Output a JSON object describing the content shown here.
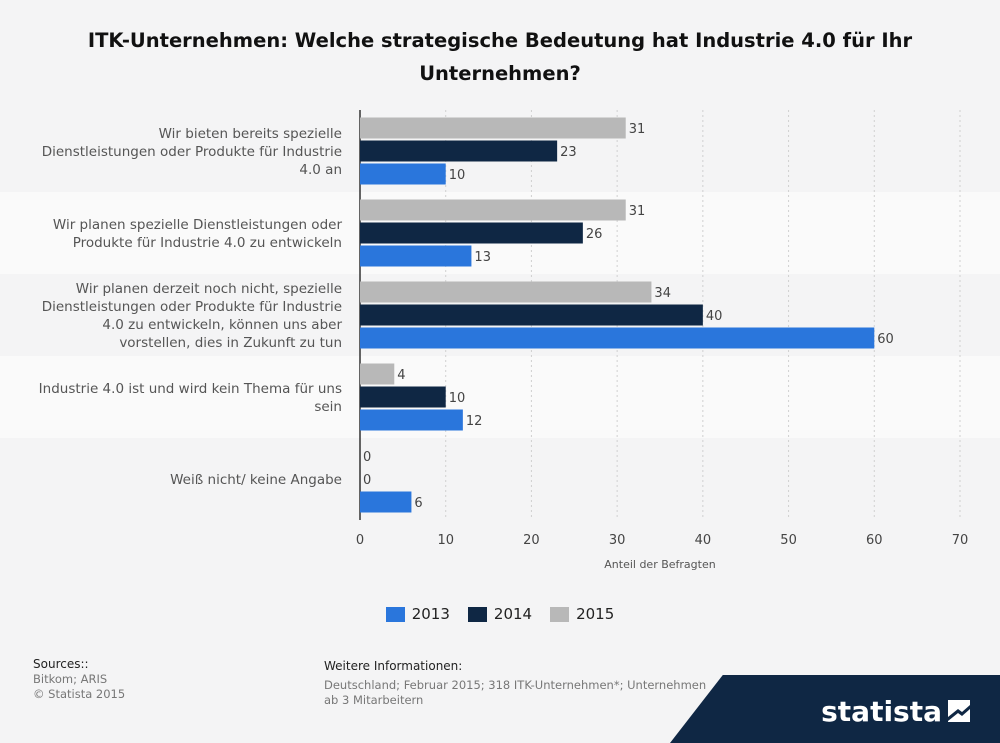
{
  "chart_data": {
    "type": "bar",
    "orientation": "horizontal",
    "title": "ITK-Unternehmen: Welche strategische Bedeutung hat Industrie 4.0 für Ihr Unternehmen?",
    "xlabel": "Anteil der Befragten",
    "xlim": [
      0,
      70
    ],
    "ticks": [
      0,
      10,
      20,
      30,
      40,
      50,
      60,
      70
    ],
    "grid": true,
    "legend_position": "bottom",
    "categories": [
      [
        "Wir bieten bereits spezielle",
        "Dienstleistungen oder Produkte für Industrie",
        "4.0 an"
      ],
      [
        "Wir planen spezielle Dienstleistungen oder",
        "Produkte für Industrie 4.0 zu entwickeln"
      ],
      [
        "Wir planen derzeit noch nicht, spezielle",
        "Dienstleistungen oder Produkte für Industrie",
        "4.0 zu entwickeln, können uns aber",
        "vorstellen, dies in Zukunft zu tun"
      ],
      [
        "Industrie 4.0 ist und wird kein Thema für uns",
        "sein"
      ],
      [
        "Weiß nicht/ keine Angabe"
      ]
    ],
    "series": [
      {
        "name": "2015",
        "color": "#b8b8b8",
        "values": [
          31,
          31,
          34,
          4,
          0
        ]
      },
      {
        "name": "2014",
        "color": "#0f2744",
        "values": [
          23,
          26,
          40,
          10,
          0
        ]
      },
      {
        "name": "2013",
        "color": "#2a76dc",
        "values": [
          10,
          13,
          60,
          12,
          6
        ]
      }
    ],
    "legend_order": [
      "2013",
      "2014",
      "2015"
    ]
  },
  "footer": {
    "sources_heading": "Sources::",
    "sources_lines": [
      "Bitkom; ARIS",
      "© Statista 2015"
    ],
    "info_heading": "Weitere Informationen:",
    "info_text": "Deutschland; Februar 2015; 318 ITK-Unternehmen*; Unternehmen ab 3 Mitarbeitern"
  },
  "brand": {
    "name": "statista",
    "color": "#0f2744"
  }
}
